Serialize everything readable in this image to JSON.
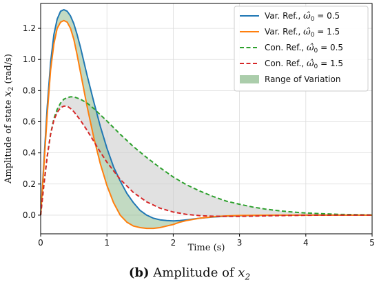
{
  "chart_data": {
    "type": "line",
    "xlabel": "Time (s)",
    "ylabel_prefix": "Amplitude of state ",
    "ylabel_var": "x",
    "ylabel_sub": "2",
    "ylabel_suffix": " (rad/s)",
    "xlim": [
      0,
      5
    ],
    "ylim": [
      -0.12,
      1.36
    ],
    "x_ticks": [
      0,
      1,
      2,
      3,
      4,
      5
    ],
    "x_tick_labels": [
      "0",
      "1",
      "2",
      "3",
      "4",
      "5"
    ],
    "y_ticks": [
      0.0,
      0.2,
      0.4,
      0.6,
      0.8,
      1.0,
      1.2
    ],
    "y_tick_labels": [
      "0.0",
      "0.2",
      "0.4",
      "0.6",
      "0.8",
      "1.0",
      "1.2"
    ],
    "grid": true,
    "legend_position": "top-right",
    "series": [
      {
        "name": "Var. Ref., ω̂₀ = 0.5",
        "legend_prefix": "Var. Ref., ",
        "legend_param": "0.5",
        "style": "solid",
        "color": "#1f77b4",
        "x": [
          0,
          0.05,
          0.1,
          0.15,
          0.2,
          0.25,
          0.3,
          0.35,
          0.4,
          0.45,
          0.5,
          0.55,
          0.6,
          0.7,
          0.8,
          0.9,
          1.0,
          1.1,
          1.2,
          1.3,
          1.4,
          1.5,
          1.6,
          1.7,
          1.8,
          1.9,
          2.0,
          2.1,
          2.2,
          2.4,
          2.6,
          2.8,
          3.0,
          3.5,
          4.0,
          4.5,
          5.0
        ],
        "y": [
          0,
          0.35,
          0.7,
          0.98,
          1.16,
          1.26,
          1.31,
          1.32,
          1.31,
          1.28,
          1.23,
          1.16,
          1.08,
          0.9,
          0.73,
          0.57,
          0.43,
          0.31,
          0.22,
          0.14,
          0.08,
          0.03,
          0.0,
          -0.02,
          -0.03,
          -0.035,
          -0.037,
          -0.035,
          -0.03,
          -0.02,
          -0.012,
          -0.007,
          -0.004,
          -0.001,
          0.0,
          0.0,
          0.0
        ]
      },
      {
        "name": "Var. Ref., ω̂₀ = 1.5",
        "legend_prefix": "Var. Ref., ",
        "legend_param": "1.5",
        "style": "solid",
        "color": "#ff7f0e",
        "x": [
          0,
          0.05,
          0.1,
          0.15,
          0.2,
          0.25,
          0.3,
          0.35,
          0.4,
          0.45,
          0.5,
          0.55,
          0.6,
          0.7,
          0.8,
          0.9,
          1.0,
          1.1,
          1.2,
          1.3,
          1.4,
          1.5,
          1.6,
          1.7,
          1.8,
          1.9,
          2.0,
          2.1,
          2.2,
          2.4,
          2.6,
          2.8,
          3.0,
          3.5,
          4.0,
          4.5,
          5.0
        ],
        "y": [
          0,
          0.32,
          0.65,
          0.93,
          1.1,
          1.2,
          1.24,
          1.25,
          1.24,
          1.2,
          1.13,
          1.03,
          0.92,
          0.7,
          0.5,
          0.33,
          0.19,
          0.08,
          0.0,
          -0.045,
          -0.07,
          -0.08,
          -0.085,
          -0.085,
          -0.08,
          -0.07,
          -0.06,
          -0.045,
          -0.035,
          -0.02,
          -0.01,
          -0.005,
          -0.002,
          0.0,
          0.0,
          0.0,
          0.0
        ]
      },
      {
        "name": "Con. Ref., ω̂₀ = 0.5",
        "legend_prefix": "Con. Ref., ",
        "legend_param": "0.5",
        "style": "dashed",
        "color": "#2ca02c",
        "x": [
          0,
          0.05,
          0.1,
          0.15,
          0.2,
          0.25,
          0.3,
          0.35,
          0.4,
          0.45,
          0.5,
          0.6,
          0.7,
          0.8,
          0.9,
          1.0,
          1.2,
          1.4,
          1.6,
          1.8,
          2.0,
          2.2,
          2.4,
          2.6,
          2.8,
          3.0,
          3.2,
          3.4,
          3.6,
          3.8,
          4.0,
          4.5,
          5.0
        ],
        "y": [
          0,
          0.2,
          0.38,
          0.52,
          0.62,
          0.68,
          0.72,
          0.745,
          0.755,
          0.76,
          0.76,
          0.745,
          0.72,
          0.685,
          0.645,
          0.605,
          0.52,
          0.44,
          0.37,
          0.305,
          0.245,
          0.195,
          0.155,
          0.12,
          0.09,
          0.07,
          0.052,
          0.038,
          0.028,
          0.02,
          0.014,
          0.005,
          0.002
        ]
      },
      {
        "name": "Con. Ref., ω̂₀ = 1.5",
        "legend_prefix": "Con. Ref., ",
        "legend_param": "1.5",
        "style": "dashed",
        "color": "#d62728",
        "x": [
          0,
          0.05,
          0.1,
          0.15,
          0.2,
          0.25,
          0.3,
          0.35,
          0.4,
          0.45,
          0.5,
          0.6,
          0.7,
          0.8,
          0.9,
          1.0,
          1.2,
          1.4,
          1.6,
          1.8,
          2.0,
          2.2,
          2.4,
          2.6,
          2.8,
          3.0,
          3.5,
          4.0,
          4.5,
          5.0
        ],
        "y": [
          0,
          0.2,
          0.38,
          0.52,
          0.61,
          0.66,
          0.69,
          0.7,
          0.7,
          0.685,
          0.665,
          0.61,
          0.545,
          0.475,
          0.405,
          0.34,
          0.23,
          0.145,
          0.085,
          0.045,
          0.02,
          0.005,
          -0.003,
          -0.007,
          -0.008,
          -0.008,
          -0.004,
          -0.001,
          0.0,
          0.0
        ]
      }
    ],
    "range_fill": {
      "name": "Range of Variation",
      "color": "#8fbc8f",
      "alt_color": "#c8c8c8",
      "opacity": 0.55
    }
  },
  "caption": {
    "label": "(b)",
    "text": " Amplitude of ",
    "var": "x",
    "sub": "2"
  },
  "legend": {
    "omega_symbol": "ω̂",
    "omega_sub": "0",
    "equals": " = "
  }
}
